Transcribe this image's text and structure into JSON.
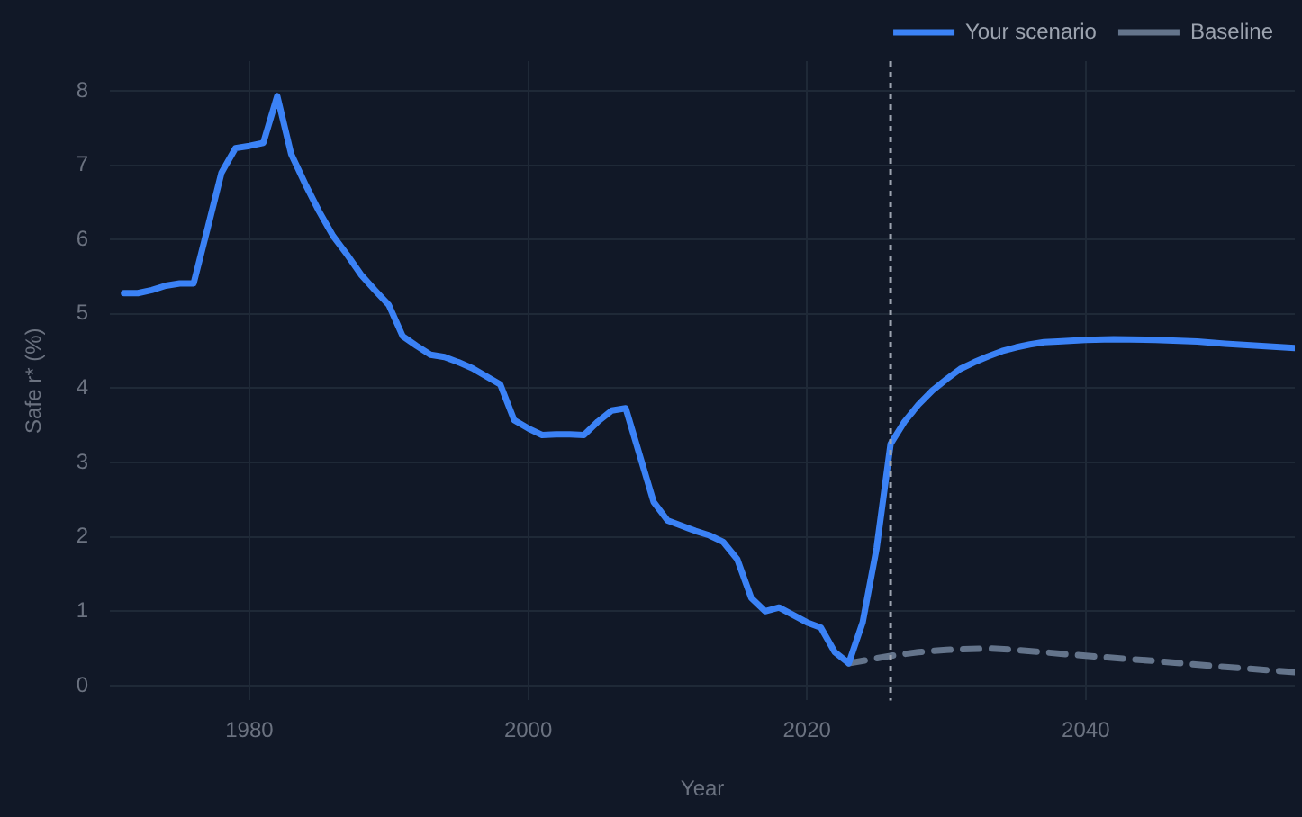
{
  "chart_data": {
    "type": "line",
    "xlabel": "Year",
    "ylabel": "Safe r* (%)",
    "xlim": [
      1970,
      2055
    ],
    "xticks": [
      1980,
      2000,
      2020,
      2040
    ],
    "ylim": [
      -0.2,
      8.4
    ],
    "yticks": [
      0,
      1,
      2,
      3,
      4,
      5,
      6,
      7,
      8
    ],
    "grid": true,
    "legend": "top right",
    "marker": "none",
    "ref_lines": [
      {
        "axis": "x",
        "value": 2026,
        "color": "#9ca3af",
        "line_style": "dotted"
      }
    ],
    "series": [
      {
        "name": "Baseline",
        "color": "#64748b",
        "line_style": "dashed",
        "x": [
          2023,
          2026,
          2028,
          2030,
          2033,
          2035,
          2040,
          2045,
          2050,
          2055
        ],
        "values": [
          0.3,
          0.4,
          0.45,
          0.48,
          0.5,
          0.48,
          0.4,
          0.33,
          0.25,
          0.18
        ]
      },
      {
        "name": "Your scenario",
        "color": "#3b82f6",
        "line_style": "solid",
        "x": [
          1971,
          1972,
          1973,
          1974,
          1975,
          1976,
          1977,
          1978,
          1979,
          1980,
          1981,
          1982,
          1983,
          1984,
          1985,
          1986,
          1987,
          1988,
          1989,
          1990,
          1991,
          1992,
          1993,
          1994,
          1995,
          1996,
          1997,
          1998,
          1999,
          2000,
          2001,
          2002,
          2003,
          2004,
          2005,
          2006,
          2007,
          2008,
          2009,
          2010,
          2011,
          2012,
          2013,
          2014,
          2015,
          2016,
          2017,
          2018,
          2019,
          2020,
          2021,
          2022,
          2023,
          2024,
          2025,
          2026,
          2027,
          2028,
          2029,
          2030,
          2031,
          2032,
          2033,
          2034,
          2035,
          2036,
          2037,
          2038,
          2040,
          2042,
          2045,
          2048,
          2050,
          2055
        ],
        "values": [
          5.28,
          5.28,
          5.32,
          5.38,
          5.41,
          5.41,
          6.15,
          6.9,
          7.23,
          7.26,
          7.3,
          7.93,
          7.15,
          6.75,
          6.38,
          6.05,
          5.8,
          5.53,
          5.32,
          5.12,
          4.7,
          4.57,
          4.45,
          4.42,
          4.35,
          4.27,
          4.16,
          4.05,
          3.57,
          3.46,
          3.37,
          3.38,
          3.38,
          3.37,
          3.55,
          3.7,
          3.73,
          3.1,
          2.47,
          2.22,
          2.15,
          2.08,
          2.02,
          1.93,
          1.7,
          1.18,
          1.0,
          1.05,
          0.95,
          0.85,
          0.78,
          0.45,
          0.3,
          0.85,
          1.85,
          3.25,
          3.55,
          3.78,
          3.97,
          4.12,
          4.26,
          4.35,
          4.43,
          4.5,
          4.55,
          4.59,
          4.62,
          4.63,
          4.65,
          4.66,
          4.65,
          4.63,
          4.6,
          4.54
        ]
      }
    ]
  }
}
